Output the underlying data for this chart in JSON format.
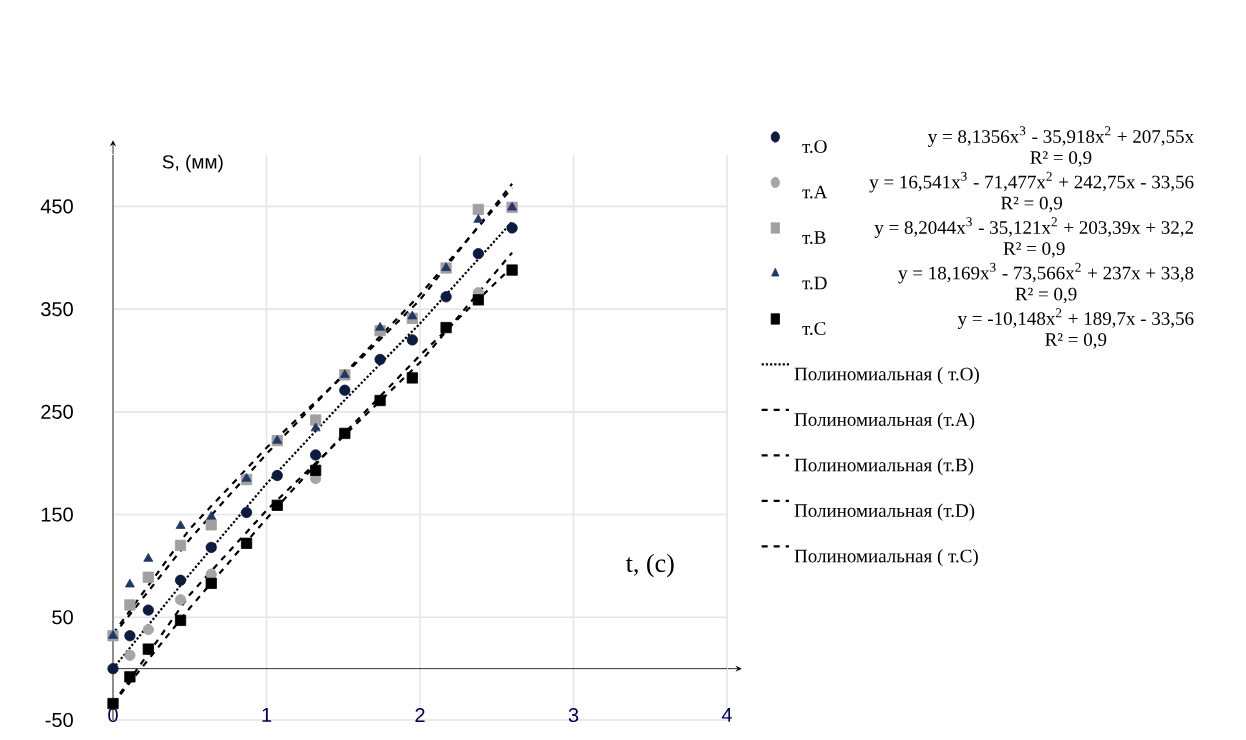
{
  "chart_data": {
    "type": "scatter",
    "xlabel": "t, (с)",
    "ylabel": "S, (мм)",
    "xlim": [
      0,
      4
    ],
    "ylim": [
      -50,
      500
    ],
    "xticks": [
      0,
      1,
      2,
      3,
      4
    ],
    "yticks": [
      -50,
      50,
      150,
      250,
      350,
      450
    ],
    "grid": true,
    "legend": "right",
    "x": [
      0,
      0.11,
      0.23,
      0.44,
      0.64,
      0.87,
      1.07,
      1.32,
      1.51,
      1.74,
      1.95,
      2.17,
      2.38,
      2.6
    ],
    "series": [
      {
        "name": "т.O",
        "marker": "circle",
        "color": "#0d1b3e",
        "values": [
          0,
          32,
          57,
          86,
          118,
          152,
          188,
          208,
          271,
          301,
          320,
          362,
          404,
          429
        ]
      },
      {
        "name": "т.A",
        "marker": "circle",
        "color": "#a6a6a6",
        "values": [
          null,
          13,
          38,
          67,
          92,
          null,
          null,
          185,
          null,
          null,
          null,
          null,
          366,
          null
        ]
      },
      {
        "name": "т.B",
        "marker": "square",
        "color": "#a0a0a0",
        "values": [
          32,
          62,
          89,
          120,
          140,
          184,
          222,
          242,
          286,
          329,
          341,
          390,
          447,
          449
        ]
      },
      {
        "name": "т.D",
        "marker": "triangle",
        "color": "#1f3864",
        "values": [
          32,
          82,
          107,
          139,
          148,
          185,
          222,
          234,
          286,
          332,
          343,
          390,
          437,
          449
        ]
      },
      {
        "name": "т.C",
        "marker": "square",
        "color": "#000000",
        "values": [
          -34,
          -8,
          19,
          47,
          83,
          122,
          159,
          193,
          229,
          261,
          283,
          332,
          359,
          388
        ]
      },
      {
        "name": "Полиномиальная ( т.O)",
        "type": "line",
        "marker": "none",
        "line_style": "dotted",
        "color": "#000000",
        "x": [
          0,
          0.5,
          1,
          1.5,
          2,
          2.6
        ],
        "values": [
          0,
          92,
          180,
          260,
          336,
          435
        ]
      },
      {
        "name": "Полиномиальная (т.A)",
        "type": "line",
        "marker": "none",
        "line_style": "dashed",
        "color": "#000000",
        "x": [
          0,
          0.5,
          1,
          1.5,
          2,
          2.6
        ],
        "values": [
          -34,
          72,
          154,
          226,
          298,
          405
        ]
      },
      {
        "name": "Полиномиальная (т.B)",
        "type": "line",
        "marker": "none",
        "line_style": "dashed",
        "color": "#000000",
        "x": [
          0,
          0.5,
          1,
          1.5,
          2,
          2.6
        ],
        "values": [
          32,
          126,
          209,
          286,
          364,
          468
        ]
      },
      {
        "name": "Полиномиальная (т.D)",
        "type": "line",
        "marker": "none",
        "line_style": "dashed",
        "color": "#000000",
        "x": [
          0,
          0.5,
          1,
          1.5,
          2,
          2.6
        ],
        "values": [
          34,
          136,
          215,
          285,
          359,
          472
        ]
      },
      {
        "name": "Полиномиальная ( т.C)",
        "type": "line",
        "marker": "none",
        "line_style": "dashed",
        "color": "#000000",
        "x": [
          0,
          0.5,
          1,
          1.5,
          2,
          2.6
        ],
        "values": [
          -34,
          59,
          146,
          228,
          305,
          391
        ]
      }
    ],
    "annotations": [
      "y = 8,1356x$^{3}$ - 35,918x$^{2}$ + 207,55x",
      "R² = 0,9",
      "y = 16,541x$^{3}$ - 71,477x$^{2}$ + 242,75x - 33,56",
      "R² = 0,9",
      "y = 8,2044x$^{3}$ - 35,121x$^{2}$ + 203,39x + 32,2",
      "R² = 0,9",
      "y = 18,169x$^{3}$ - 73,566x$^{2}$ + 237x + 33,8",
      "R² = 0,9",
      "y = -10,148x$^{2}$ + 189,7x - 33,56",
      "R² = 0,9"
    ]
  }
}
